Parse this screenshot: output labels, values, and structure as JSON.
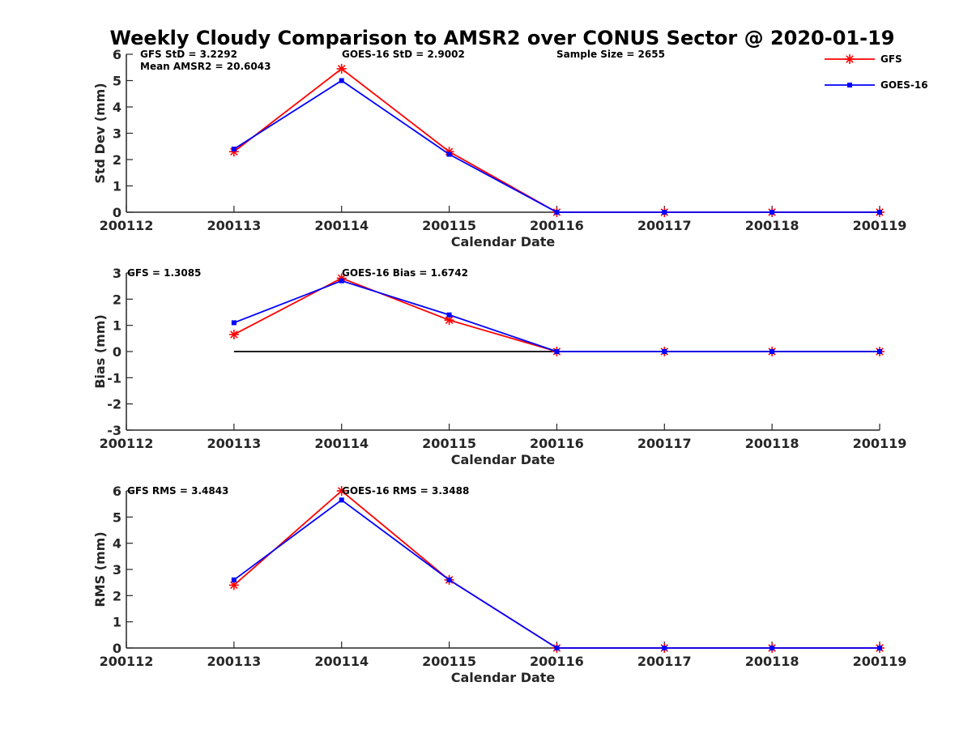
{
  "title": "Weekly Cloudy Comparison to AMSR2 over CONUS Sector @ 2020-01-19",
  "legend": [
    {
      "name": "GFS",
      "color": "#ff0000",
      "marker": "asterisk"
    },
    {
      "name": "GOES-16",
      "color": "#0000ff",
      "marker": "square"
    }
  ],
  "chart_data": [
    {
      "type": "line",
      "categories": [
        "200112",
        "200113",
        "200114",
        "200115",
        "200116",
        "200117",
        "200118",
        "200119"
      ],
      "xlabel": "Calendar Date",
      "ylabel": "Std Dev (mm)",
      "ylim": [
        0,
        6
      ],
      "yticks": [
        0,
        1,
        2,
        3,
        4,
        5,
        6
      ],
      "series": [
        {
          "name": "GFS",
          "values": [
            null,
            2.3,
            5.45,
            2.3,
            0,
            0,
            0,
            0
          ]
        },
        {
          "name": "GOES-16",
          "values": [
            null,
            2.4,
            5.0,
            2.2,
            0,
            0,
            0,
            0
          ]
        }
      ],
      "annotations": [
        "GFS StD = 3.2292",
        "Mean AMSR2 = 20.6043",
        "GOES-16 StD = 2.9002",
        "Sample Size = 2655"
      ]
    },
    {
      "type": "line",
      "categories": [
        "200112",
        "200113",
        "200114",
        "200115",
        "200116",
        "200117",
        "200118",
        "200119"
      ],
      "xlabel": "Calendar Date",
      "ylabel": "Bias (mm)",
      "ylim": [
        -3,
        3
      ],
      "yticks": [
        -3,
        -2,
        -1,
        0,
        1,
        2,
        3
      ],
      "zero_line": true,
      "series": [
        {
          "name": "GFS",
          "values": [
            null,
            0.65,
            2.8,
            1.2,
            0,
            0,
            0,
            0
          ]
        },
        {
          "name": "GOES-16",
          "values": [
            null,
            1.1,
            2.7,
            1.4,
            0,
            0,
            0,
            0
          ]
        }
      ],
      "annotations": [
        "GFS = 1.3085",
        "GOES-16 Bias  = 1.6742"
      ]
    },
    {
      "type": "line",
      "categories": [
        "200112",
        "200113",
        "200114",
        "200115",
        "200116",
        "200117",
        "200118",
        "200119"
      ],
      "xlabel": "Calendar Date",
      "ylabel": "RMS (mm)",
      "ylim": [
        0,
        6
      ],
      "yticks": [
        0,
        1,
        2,
        3,
        4,
        5,
        6
      ],
      "series": [
        {
          "name": "GFS",
          "values": [
            null,
            2.4,
            6.0,
            2.6,
            0,
            0,
            0,
            0
          ]
        },
        {
          "name": "GOES-16",
          "values": [
            null,
            2.6,
            5.65,
            2.6,
            0,
            0,
            0,
            0
          ]
        }
      ],
      "annotations": [
        "GFS RMS = 3.4843",
        "GOES-16 RMS = 3.3488"
      ]
    }
  ]
}
